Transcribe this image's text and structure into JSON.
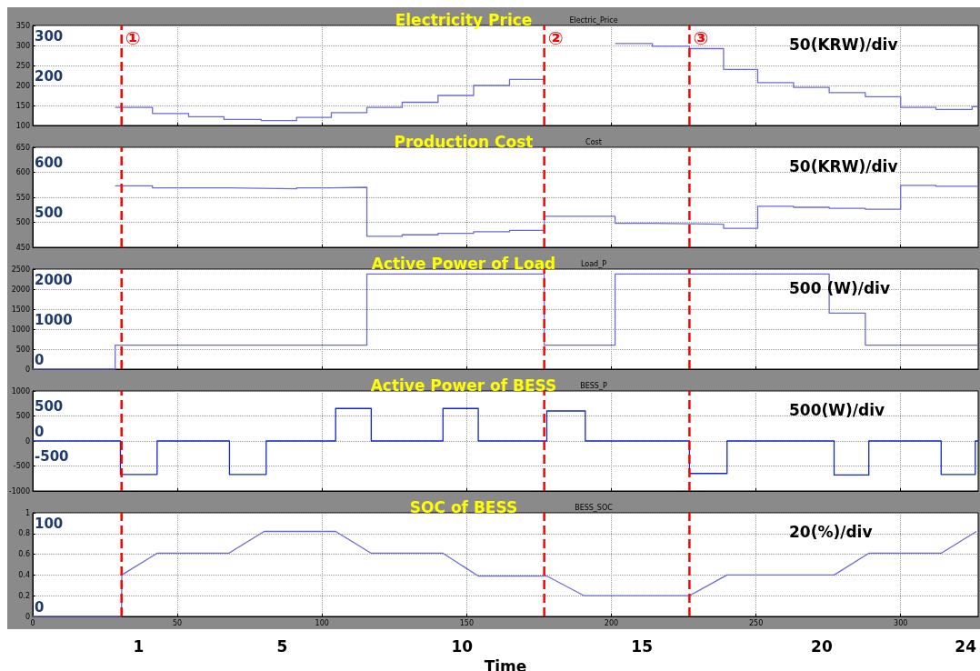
{
  "chart_data": [
    {
      "type": "step",
      "title": "Electricity Price",
      "subtitle": "Electric_Price",
      "annotations": [
        "50(KRW)/div"
      ],
      "xlim": [
        0,
        326.8
      ],
      "xticks": [
        0,
        50,
        100,
        150,
        200,
        250,
        300
      ],
      "ylim": [
        100,
        350
      ],
      "yticks": [
        100,
        150,
        200,
        250,
        300,
        350
      ],
      "y2lim": [
        100,
        350
      ],
      "y2ticks": [
        200,
        300
      ],
      "tick_labels": "y",
      "grid": true,
      "marker": "none",
      "x": [
        28.5,
        41.4,
        53.9,
        66.1,
        79,
        91.2,
        103.2,
        115.5,
        127.7,
        140.1,
        152.4,
        164.8,
        176.8,
        177,
        201.3,
        214.2,
        227,
        238.8,
        250.6,
        263,
        275.3,
        287.8,
        300,
        312.2,
        324.7,
        326.8
      ],
      "series": [
        {
          "color": "#6b6bd6",
          "values": [
            145,
            130,
            122,
            115,
            112,
            120,
            132,
            145,
            158,
            175,
            200,
            215,
            215,
            null,
            305,
            298,
            292,
            240,
            207,
            195,
            182,
            172,
            145,
            140,
            147,
            147
          ]
        }
      ],
      "ref_lines": [
        {
          "axis": "x",
          "value": 30.7,
          "label": "①",
          "color": "#ff0000",
          "line_style": "dashed"
        },
        {
          "axis": "x",
          "value": 176.8,
          "label": "②",
          "color": "#ff0000",
          "line_style": "dashed"
        },
        {
          "axis": "x",
          "value": 227,
          "label": "③",
          "color": "#ff0000",
          "line_style": "dashed"
        }
      ]
    },
    {
      "type": "step",
      "title": "Production Cost",
      "subtitle": "Cost",
      "annotations": [
        "50(KRW)/div"
      ],
      "xlim": [
        0,
        326.8
      ],
      "xticks": [
        0,
        50,
        100,
        150,
        200,
        250,
        300
      ],
      "ylim": [
        450,
        650
      ],
      "yticks": [
        450,
        500,
        550,
        600,
        650
      ],
      "y2lim": [
        450,
        650
      ],
      "y2ticks": [
        500,
        600
      ],
      "tick_labels": "y",
      "grid": true,
      "marker": "none",
      "x": [
        28.5,
        41.4,
        66.1,
        79,
        91.2,
        103.2,
        115.5,
        127.7,
        140.1,
        152.4,
        164.8,
        176.8,
        201.3,
        214.2,
        227,
        238.8,
        250.6,
        263,
        275.3,
        287.8,
        300,
        312.2,
        326.8
      ],
      "series": [
        {
          "color": "#6b6bd6",
          "values": [
            573,
            569,
            568,
            567,
            569,
            570,
            472,
            475,
            478,
            481,
            484,
            512,
            498,
            497,
            496,
            488,
            532,
            530,
            528,
            526,
            574,
            572,
            572
          ]
        }
      ],
      "ref_lines": [
        {
          "axis": "x",
          "value": 30.7,
          "color": "#ff0000",
          "line_style": "dashed"
        },
        {
          "axis": "x",
          "value": 176.8,
          "color": "#ff0000",
          "line_style": "dashed"
        },
        {
          "axis": "x",
          "value": 227,
          "color": "#ff0000",
          "line_style": "dashed"
        }
      ]
    },
    {
      "type": "step",
      "title": "Active Power of Load",
      "subtitle": "Load_P",
      "annotations": [
        "500 (W)/div"
      ],
      "xlim": [
        0,
        326.8
      ],
      "xticks": [
        0,
        50,
        100,
        150,
        200,
        250,
        300
      ],
      "ylim": [
        0,
        2500
      ],
      "yticks": [
        0,
        500,
        1000,
        1500,
        2000,
        2500
      ],
      "y2lim": [
        0,
        2500
      ],
      "y2ticks": [
        0,
        1000,
        2000
      ],
      "tick_labels": "y",
      "grid": true,
      "marker": "none",
      "x": [
        0,
        28.5,
        115.5,
        176.8,
        201.3,
        275.3,
        287.8,
        326.8
      ],
      "series": [
        {
          "color": "#6b6bd6",
          "values": [
            0,
            600,
            2380,
            600,
            2380,
            1400,
            600,
            600
          ]
        }
      ],
      "ref_lines": [
        {
          "axis": "x",
          "value": 30.7,
          "color": "#ff0000",
          "line_style": "dashed"
        },
        {
          "axis": "x",
          "value": 176.8,
          "color": "#ff0000",
          "line_style": "dashed"
        },
        {
          "axis": "x",
          "value": 227,
          "color": "#ff0000",
          "line_style": "dashed"
        }
      ]
    },
    {
      "type": "step",
      "title": "Active Power of BESS",
      "subtitle": "BESS_P",
      "annotations": [
        "500(W)/div"
      ],
      "xlim": [
        0,
        326.8
      ],
      "xticks": [
        0,
        50,
        100,
        150,
        200,
        250,
        300
      ],
      "ylim": [
        -1000,
        1000
      ],
      "yticks": [
        -1000,
        -500,
        0,
        500,
        1000
      ],
      "y2lim": [
        -1000,
        1000
      ],
      "y2ticks": [
        -500,
        0,
        500
      ],
      "tick_labels": "y",
      "grid": true,
      "marker": "none",
      "x": [
        0,
        30.3,
        43,
        68,
        80.7,
        104.7,
        117,
        141.8,
        154,
        177.7,
        191,
        227,
        240,
        277,
        289,
        314,
        325.8,
        326.8
      ],
      "series": [
        {
          "color": "#1428c8",
          "values": [
            0,
            -670,
            0,
            -670,
            0,
            650,
            0,
            650,
            0,
            600,
            0,
            -650,
            0,
            -680,
            0,
            -670,
            0,
            0
          ]
        }
      ],
      "ref_lines": [
        {
          "axis": "x",
          "value": 30.7,
          "color": "#ff0000",
          "line_style": "dashed"
        },
        {
          "axis": "x",
          "value": 176.8,
          "color": "#ff0000",
          "line_style": "dashed"
        },
        {
          "axis": "x",
          "value": 227,
          "color": "#ff0000",
          "line_style": "dashed"
        }
      ]
    },
    {
      "type": "line",
      "title": "SOC of BESS",
      "subtitle": "BESS_SOC",
      "annotations": [
        "20(%)/div"
      ],
      "xlabel": "Time",
      "xlim": [
        0,
        326.8
      ],
      "xticks": [
        0,
        50,
        100,
        150,
        200,
        250,
        300
      ],
      "x2lim": [
        -1.94,
        24.35
      ],
      "x2ticks": [
        1,
        5,
        10,
        15,
        20,
        24
      ],
      "ylim": [
        0,
        1
      ],
      "yticks": [
        0,
        0.2,
        0.4,
        0.6,
        0.8,
        1
      ],
      "y2lim": [
        0,
        125
      ],
      "y2ticks": [
        0,
        100
      ],
      "grid": true,
      "marker": "none",
      "x": [
        0,
        30.7,
        30.8,
        43,
        67.8,
        80,
        104.7,
        117,
        141.8,
        154,
        177.7,
        190.6,
        227,
        240,
        277,
        289,
        314,
        326.2
      ],
      "series": [
        {
          "color": "#6b6bd6",
          "values": [
            0,
            0,
            0.4,
            0.61,
            0.61,
            0.82,
            0.82,
            0.61,
            0.61,
            0.39,
            0.39,
            0.2,
            0.2,
            0.4,
            0.4,
            0.61,
            0.61,
            0.82
          ]
        }
      ],
      "ref_lines": [
        {
          "axis": "x",
          "value": 30.7,
          "color": "#ff0000",
          "line_style": "dashed"
        },
        {
          "axis": "x",
          "value": 176.8,
          "color": "#ff0000",
          "line_style": "dashed"
        },
        {
          "axis": "x",
          "value": 227,
          "color": "#ff0000",
          "line_style": "dashed"
        }
      ]
    }
  ]
}
